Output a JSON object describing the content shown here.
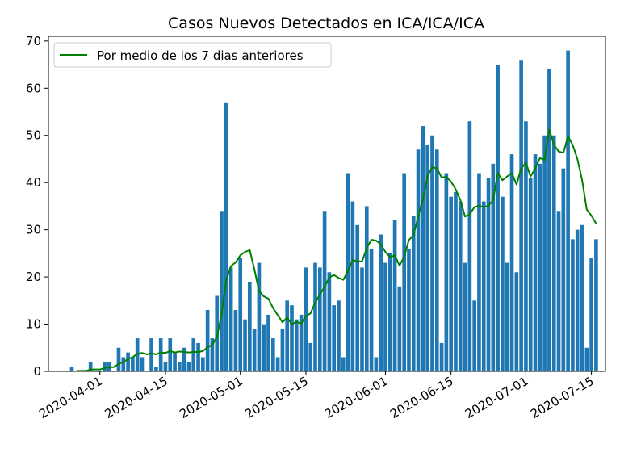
{
  "chart_data": {
    "type": "bar",
    "title": "Casos Nuevos Detectados en ICA/ICA/ICA",
    "xlabel": "",
    "ylabel": "",
    "x_start_date": "2020-03-21",
    "xlim": [
      "2020-03-21",
      "2020-07-18"
    ],
    "ylim": [
      0,
      71
    ],
    "yticks": [
      0,
      10,
      20,
      30,
      40,
      50,
      60,
      70
    ],
    "xticks": [
      "2020-04-01",
      "2020-04-15",
      "2020-05-01",
      "2020-05-15",
      "2020-06-01",
      "2020-06-15",
      "2020-07-01",
      "2020-07-15"
    ],
    "grid": false,
    "legend_position": "upper-left",
    "bar_color": "#1f77b4",
    "line_color": "#008000",
    "series": [
      {
        "type": "bar",
        "values": [
          0,
          0,
          0,
          0,
          0,
          1,
          0,
          0,
          0,
          2,
          0,
          0,
          2,
          2,
          0,
          5,
          3,
          4,
          3,
          7,
          3,
          0,
          7,
          1,
          7,
          2,
          7,
          4,
          2,
          5,
          2,
          7,
          6,
          3,
          13,
          7,
          16,
          34,
          57,
          22,
          13,
          24,
          11,
          19,
          9,
          23,
          10,
          12,
          7,
          3,
          9,
          15,
          14,
          11,
          12,
          22,
          6,
          23,
          22,
          34,
          21,
          14,
          15,
          3,
          42,
          36,
          31,
          22,
          35,
          26,
          3,
          29,
          23,
          25,
          32,
          18,
          42,
          26,
          33,
          47,
          52,
          48,
          50,
          47,
          6,
          42,
          37,
          38,
          36,
          23,
          53,
          15,
          42,
          36,
          41,
          44,
          65,
          37,
          23,
          46,
          21,
          66,
          53,
          41,
          46,
          44,
          50,
          64,
          50,
          34,
          43,
          68,
          28,
          30,
          31,
          5,
          24,
          28
        ]
      },
      {
        "type": "line",
        "name": "Por medio de los 7 dias anteriores",
        "values": [
          null,
          null,
          null,
          null,
          null,
          null,
          0.1,
          0.1,
          0.1,
          0.4,
          0.4,
          0.4,
          0.7,
          0.9,
          0.9,
          1.6,
          2.0,
          2.6,
          3.0,
          3.7,
          3.9,
          3.6,
          3.8,
          3.6,
          4.0,
          3.9,
          4.3,
          4.0,
          4.2,
          4.1,
          4.0,
          4.1,
          4.1,
          4.3,
          5.1,
          5.6,
          7.3,
          12.1,
          19.4,
          22.3,
          23.1,
          24.6,
          25.3,
          25.7,
          21.6,
          17.0,
          15.9,
          15.4,
          13.4,
          11.9,
          10.4,
          11.4,
          10.0,
          10.5,
          10.1,
          11.7,
          12.3,
          14.6,
          16.3,
          17.9,
          19.9,
          20.4,
          19.8,
          19.4,
          21.3,
          23.6,
          23.3,
          23.3,
          26.1,
          27.9,
          27.7,
          26.9,
          25.3,
          24.2,
          24.6,
          22.4,
          24.3,
          27.8,
          28.9,
          32.9,
          36.4,
          41.4,
          43.3,
          43.0,
          41.1,
          41.2,
          40.2,
          38.6,
          36.3,
          32.8,
          33.3,
          34.8,
          35.1,
          34.8,
          35.1,
          36.3,
          42.0,
          40.5,
          41.3,
          42.0,
          39.6,
          43.0,
          44.2,
          41.3,
          43.0,
          45.2,
          44.8,
          51.2,
          48.0,
          46.6,
          46.3,
          49.8,
          48.0,
          45.0,
          40.6,
          34.3,
          33.0,
          31.3
        ]
      }
    ]
  }
}
